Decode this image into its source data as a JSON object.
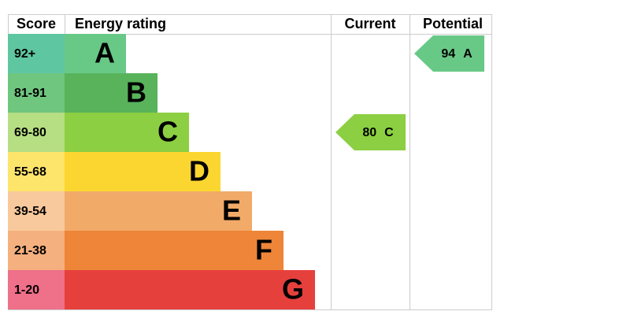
{
  "header": {
    "score": "Score",
    "rating": "Energy rating",
    "current": "Current",
    "potential": "Potential"
  },
  "bands": [
    {
      "score": "92+",
      "letter": "A",
      "score_color": "#5fc6a2",
      "bar_color": "#68c987"
    },
    {
      "score": "81-91",
      "letter": "B",
      "score_color": "#6fc67f",
      "bar_color": "#58b35b"
    },
    {
      "score": "69-80",
      "letter": "C",
      "score_color": "#b6de83",
      "bar_color": "#8ccf42"
    },
    {
      "score": "55-68",
      "letter": "D",
      "score_color": "#fde46b",
      "bar_color": "#fcd630"
    },
    {
      "score": "39-54",
      "letter": "E",
      "score_color": "#f8c99c",
      "bar_color": "#f2aa69"
    },
    {
      "score": "21-38",
      "letter": "F",
      "score_color": "#f4b07f",
      "bar_color": "#ee8538"
    },
    {
      "score": "1-20",
      "letter": "G",
      "score_color": "#ee7089",
      "bar_color": "#e6403d"
    }
  ],
  "current": {
    "score": "80",
    "letter": "C"
  },
  "potential": {
    "score": "94",
    "letter": "A"
  }
}
